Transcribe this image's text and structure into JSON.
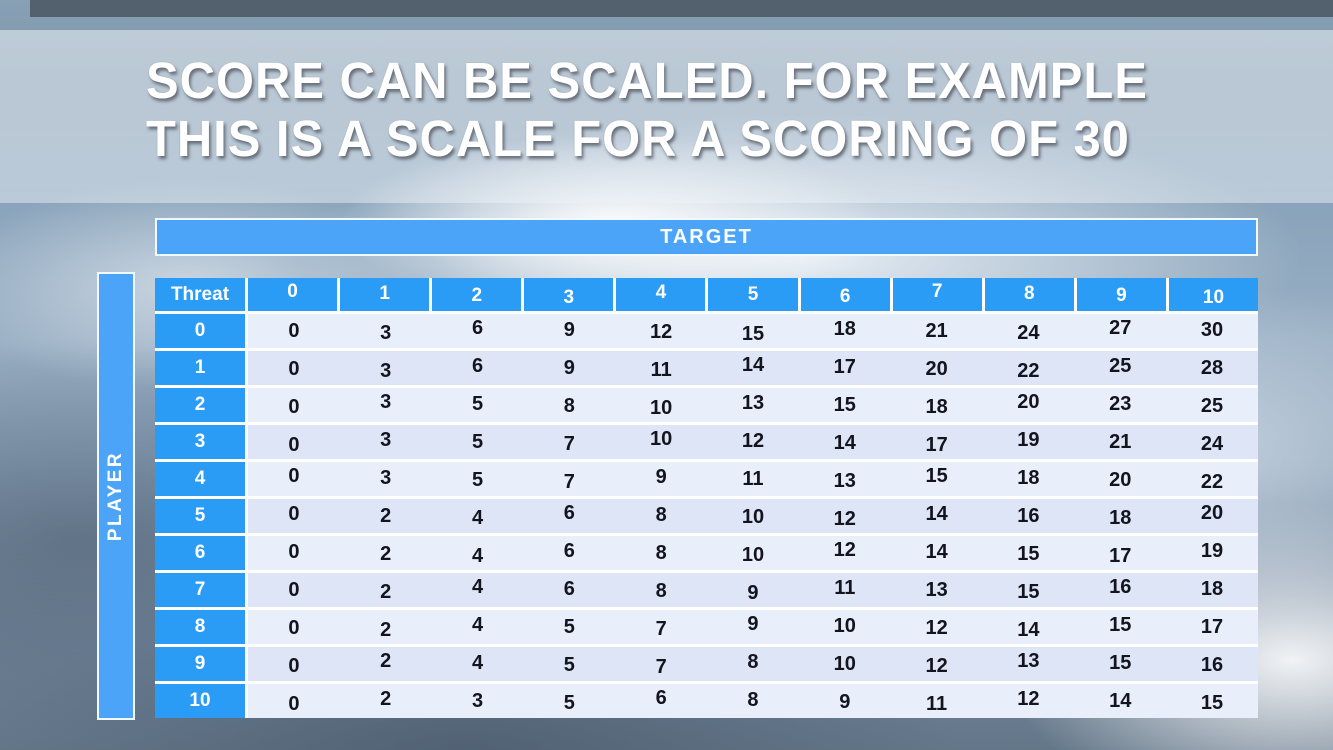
{
  "slide": {
    "title_line1": "SCORE CAN BE SCALED. FOR EXAMPLE",
    "title_line2": "THIS IS A SCALE FOR A SCORING OF 30"
  },
  "chart_data": {
    "type": "table",
    "title": "SCORE CAN BE SCALED. FOR EXAMPLE THIS IS A SCALE FOR A SCORING OF 30",
    "x_axis_label": "TARGET",
    "y_axis_label": "PLAYER",
    "corner_header": "Threat",
    "columns": [
      "0",
      "1",
      "2",
      "3",
      "4",
      "5",
      "6",
      "7",
      "8",
      "9",
      "10"
    ],
    "row_headers": [
      "0",
      "1",
      "2",
      "3",
      "4",
      "5",
      "6",
      "7",
      "8",
      "9",
      "10"
    ],
    "values": [
      [
        0,
        3,
        6,
        9,
        12,
        15,
        18,
        21,
        24,
        27,
        30
      ],
      [
        0,
        3,
        6,
        9,
        11,
        14,
        17,
        20,
        22,
        25,
        28
      ],
      [
        0,
        3,
        5,
        8,
        10,
        13,
        15,
        18,
        20,
        23,
        25
      ],
      [
        0,
        3,
        5,
        7,
        10,
        12,
        14,
        17,
        19,
        21,
        24
      ],
      [
        0,
        3,
        5,
        7,
        9,
        11,
        13,
        15,
        18,
        20,
        22
      ],
      [
        0,
        2,
        4,
        6,
        8,
        10,
        12,
        14,
        16,
        18,
        20
      ],
      [
        0,
        2,
        4,
        6,
        8,
        10,
        12,
        14,
        15,
        17,
        19
      ],
      [
        0,
        2,
        4,
        6,
        8,
        9,
        11,
        13,
        15,
        16,
        18
      ],
      [
        0,
        2,
        4,
        5,
        7,
        9,
        10,
        12,
        14,
        15,
        17
      ],
      [
        0,
        2,
        4,
        5,
        7,
        8,
        10,
        12,
        13,
        15,
        16
      ],
      [
        0,
        2,
        3,
        5,
        6,
        8,
        9,
        11,
        12,
        14,
        15
      ]
    ]
  },
  "colors": {
    "header_blue": "#2b9cf5",
    "band_blue": "#4ba4f8",
    "row_even": "#e9eefb",
    "row_odd": "#dde5f6",
    "top_bar": "#53616e",
    "value_text": "#14141e",
    "title_text": "#ffffff"
  }
}
